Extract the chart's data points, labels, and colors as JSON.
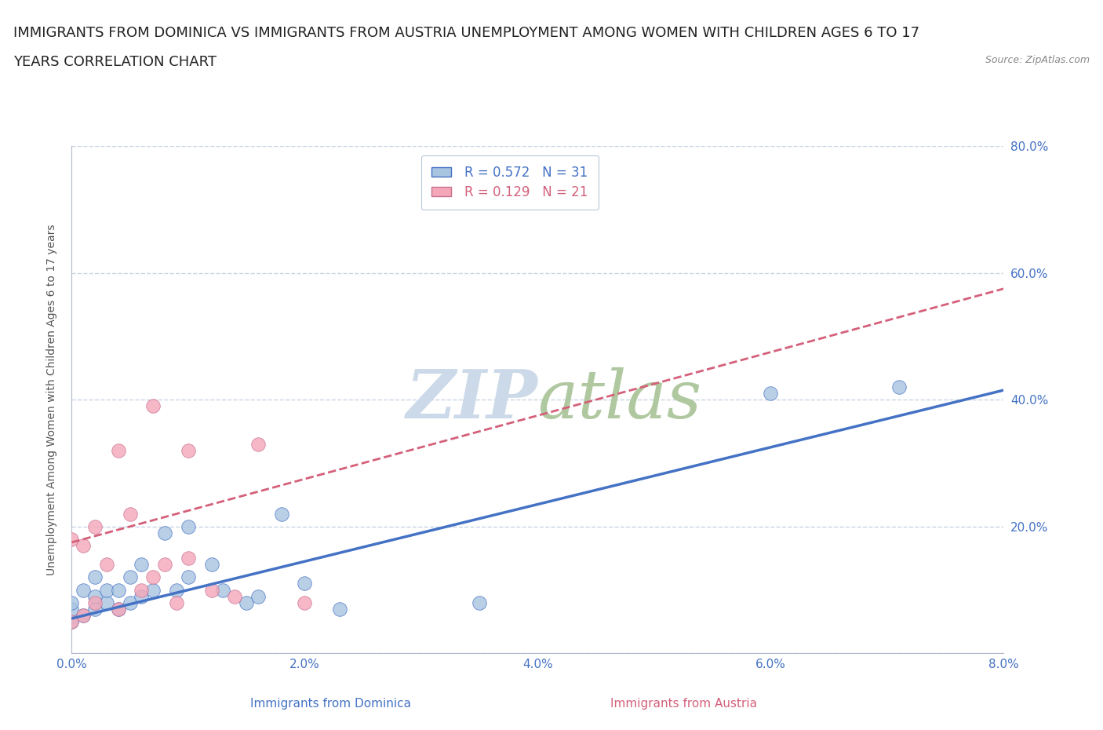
{
  "title_line1": "IMMIGRANTS FROM DOMINICA VS IMMIGRANTS FROM AUSTRIA UNEMPLOYMENT AMONG WOMEN WITH CHILDREN AGES 6 TO 17",
  "title_line2": "YEARS CORRELATION CHART",
  "source_text": "Source: ZipAtlas.com",
  "ylabel": "Unemployment Among Women with Children Ages 6 to 17 years",
  "xlabel_dominica": "Immigrants from Dominica",
  "xlabel_austria": "Immigrants from Austria",
  "legend_dominica": "R = 0.572   N = 31",
  "legend_austria": "R = 0.129   N = 21",
  "xlim": [
    0.0,
    0.08
  ],
  "ylim": [
    0.0,
    0.8
  ],
  "xticks": [
    0.0,
    0.02,
    0.04,
    0.06,
    0.08
  ],
  "yticks": [
    0.0,
    0.2,
    0.4,
    0.6,
    0.8
  ],
  "color_dominica": "#a8c4e0",
  "color_austria": "#f4a7b9",
  "color_dominica_line": "#4472c4",
  "color_austria_line": "#d4607a",
  "watermark_color": "#ccd9e8",
  "dominica_x": [
    0.0,
    0.0,
    0.0,
    0.001,
    0.001,
    0.002,
    0.002,
    0.002,
    0.003,
    0.003,
    0.004,
    0.004,
    0.005,
    0.005,
    0.006,
    0.006,
    0.007,
    0.008,
    0.009,
    0.01,
    0.01,
    0.012,
    0.013,
    0.015,
    0.016,
    0.018,
    0.02,
    0.023,
    0.035,
    0.06,
    0.071
  ],
  "dominica_y": [
    0.05,
    0.07,
    0.08,
    0.06,
    0.1,
    0.07,
    0.09,
    0.12,
    0.08,
    0.1,
    0.1,
    0.07,
    0.08,
    0.12,
    0.09,
    0.14,
    0.1,
    0.19,
    0.1,
    0.12,
    0.2,
    0.14,
    0.1,
    0.08,
    0.09,
    0.22,
    0.11,
    0.07,
    0.08,
    0.41,
    0.42
  ],
  "austria_x": [
    0.0,
    0.0,
    0.001,
    0.001,
    0.002,
    0.002,
    0.003,
    0.004,
    0.004,
    0.005,
    0.006,
    0.007,
    0.007,
    0.008,
    0.009,
    0.01,
    0.01,
    0.012,
    0.014,
    0.016,
    0.02
  ],
  "austria_y": [
    0.05,
    0.18,
    0.06,
    0.17,
    0.08,
    0.2,
    0.14,
    0.07,
    0.32,
    0.22,
    0.1,
    0.12,
    0.39,
    0.14,
    0.08,
    0.15,
    0.32,
    0.1,
    0.09,
    0.33,
    0.08
  ],
  "blue_trend_y0": 0.055,
  "blue_trend_y1": 0.415,
  "pink_trend_y0": 0.175,
  "pink_trend_y1": 0.575,
  "background_color": "#ffffff",
  "grid_color": "#c8d4e4",
  "title_fontsize": 13,
  "axis_label_fontsize": 10,
  "tick_fontsize": 11,
  "source_fontsize": 9
}
